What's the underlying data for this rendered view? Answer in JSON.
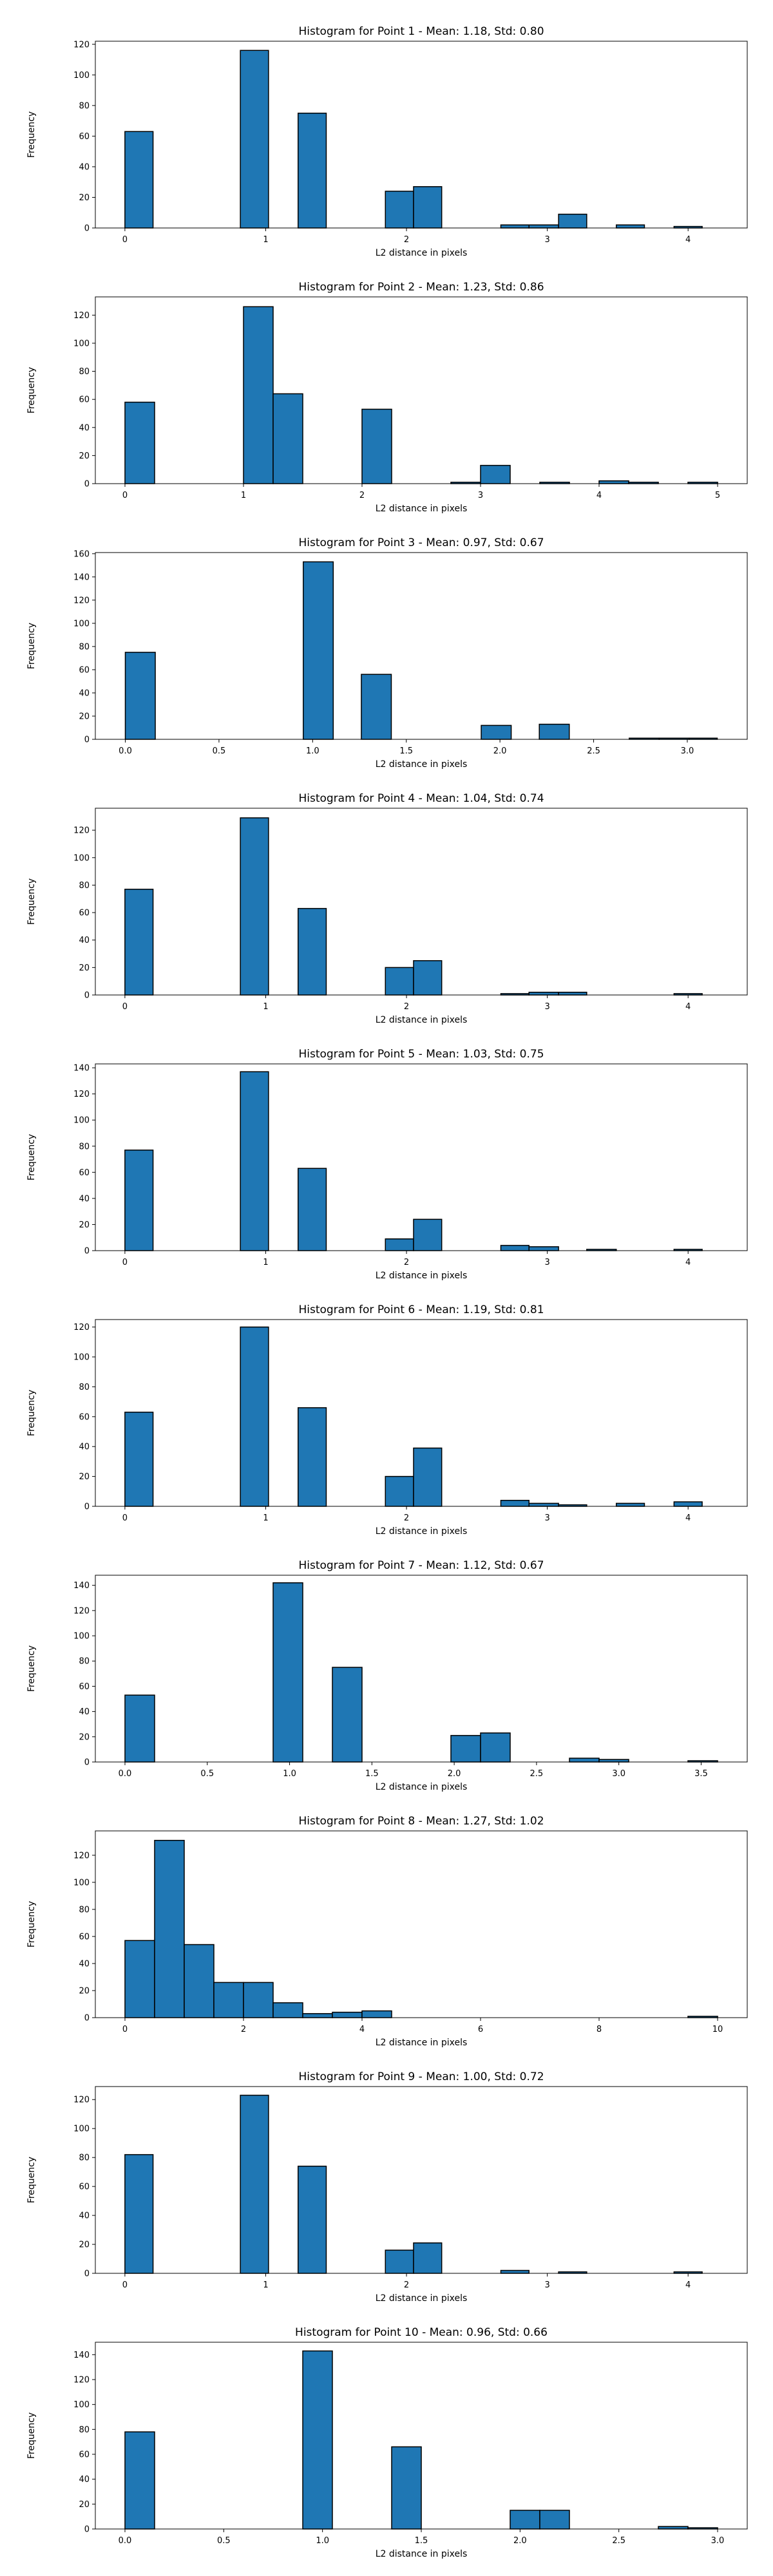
{
  "colors": {
    "bar_fill": "#1f77b4",
    "bar_edge": "#000000",
    "axis": "#000000",
    "background": "#ffffff"
  },
  "chart_data": [
    {
      "type": "bar",
      "title": "Histogram for Point 1 - Mean: 1.18, Std: 0.80",
      "xlabel": "L2 distance in pixels",
      "ylabel": "Frequency",
      "xlim": [
        -0.21,
        4.42
      ],
      "ylim": [
        0,
        122
      ],
      "xticks": [
        0,
        1,
        2,
        3,
        4
      ],
      "xtick_labels": [
        "0",
        "1",
        "2",
        "3",
        "4"
      ],
      "yticks": [
        0,
        20,
        40,
        60,
        80,
        100,
        120
      ],
      "bins": [
        [
          0,
          0.2,
          63
        ],
        [
          0.82,
          1.02,
          116
        ],
        [
          1.23,
          1.43,
          75
        ],
        [
          1.85,
          2.05,
          24
        ],
        [
          2.05,
          2.25,
          27
        ],
        [
          2.67,
          2.87,
          2
        ],
        [
          2.87,
          3.08,
          2
        ],
        [
          3.08,
          3.28,
          9
        ],
        [
          3.49,
          3.69,
          2
        ],
        [
          3.9,
          4.1,
          1
        ]
      ],
      "grid": false,
      "legend": "none"
    },
    {
      "type": "bar",
      "title": "Histogram for Point 2 - Mean: 1.23, Std: 0.86",
      "xlabel": "L2 distance in pixels",
      "ylabel": "Frequency",
      "xlim": [
        -0.25,
        5.25
      ],
      "ylim": [
        0,
        133
      ],
      "xticks": [
        0,
        1,
        2,
        3,
        4,
        5
      ],
      "xtick_labels": [
        "0",
        "1",
        "2",
        "3",
        "4",
        "5"
      ],
      "yticks": [
        0,
        20,
        40,
        60,
        80,
        100,
        120
      ],
      "bins": [
        [
          0,
          0.25,
          58
        ],
        [
          1,
          1.25,
          126
        ],
        [
          1.25,
          1.5,
          64
        ],
        [
          2,
          2.25,
          53
        ],
        [
          2.75,
          3,
          1
        ],
        [
          3,
          3.25,
          13
        ],
        [
          3.5,
          3.75,
          1
        ],
        [
          4,
          4.25,
          2
        ],
        [
          4.25,
          4.5,
          1
        ],
        [
          4.75,
          5,
          1
        ]
      ],
      "grid": false,
      "legend": "none"
    },
    {
      "type": "bar",
      "title": "Histogram for Point 3 - Mean: 0.97, Std: 0.67",
      "xlabel": "L2 distance in pixels",
      "ylabel": "Frequency",
      "xlim": [
        -0.16,
        3.32
      ],
      "ylim": [
        0,
        161
      ],
      "xticks": [
        0,
        0.5,
        1,
        1.5,
        2,
        2.5,
        3
      ],
      "xtick_labels": [
        "0.0",
        "0.5",
        "1.0",
        "1.5",
        "2.0",
        "2.5",
        "3.0"
      ],
      "yticks": [
        0,
        20,
        40,
        60,
        80,
        100,
        120,
        140,
        160
      ],
      "bins": [
        [
          0,
          0.16,
          75
        ],
        [
          0.95,
          1.11,
          153
        ],
        [
          1.26,
          1.42,
          56
        ],
        [
          1.9,
          2.06,
          12
        ],
        [
          2.21,
          2.37,
          13
        ],
        [
          2.69,
          2.85,
          1
        ],
        [
          2.85,
          3.01,
          1
        ],
        [
          3.01,
          3.16,
          1
        ]
      ],
      "grid": false,
      "legend": "none"
    },
    {
      "type": "bar",
      "title": "Histogram for Point 4 - Mean: 1.04, Std: 0.74",
      "xlabel": "L2 distance in pixels",
      "ylabel": "Frequency",
      "xlim": [
        -0.21,
        4.42
      ],
      "ylim": [
        0,
        136
      ],
      "xticks": [
        0,
        1,
        2,
        3,
        4
      ],
      "xtick_labels": [
        "0",
        "1",
        "2",
        "3",
        "4"
      ],
      "yticks": [
        0,
        20,
        40,
        60,
        80,
        100,
        120
      ],
      "bins": [
        [
          0,
          0.2,
          77
        ],
        [
          0.82,
          1.02,
          129
        ],
        [
          1.23,
          1.43,
          63
        ],
        [
          1.85,
          2.05,
          20
        ],
        [
          2.05,
          2.25,
          25
        ],
        [
          2.67,
          2.87,
          1
        ],
        [
          2.87,
          3.08,
          2
        ],
        [
          3.08,
          3.28,
          2
        ],
        [
          3.9,
          4.1,
          1
        ]
      ],
      "grid": false,
      "legend": "none"
    },
    {
      "type": "bar",
      "title": "Histogram for Point 5 - Mean: 1.03, Std: 0.75",
      "xlabel": "L2 distance in pixels",
      "ylabel": "Frequency",
      "xlim": [
        -0.21,
        4.42
      ],
      "ylim": [
        0,
        143
      ],
      "xticks": [
        0,
        1,
        2,
        3,
        4
      ],
      "xtick_labels": [
        "0",
        "1",
        "2",
        "3",
        "4"
      ],
      "yticks": [
        0,
        20,
        40,
        60,
        80,
        100,
        120,
        140
      ],
      "bins": [
        [
          0,
          0.2,
          77
        ],
        [
          0.82,
          1.02,
          137
        ],
        [
          1.23,
          1.43,
          63
        ],
        [
          1.85,
          2.05,
          9
        ],
        [
          2.05,
          2.25,
          24
        ],
        [
          2.67,
          2.87,
          4
        ],
        [
          2.87,
          3.08,
          3
        ],
        [
          3.28,
          3.49,
          1
        ],
        [
          3.9,
          4.1,
          1
        ]
      ],
      "grid": false,
      "legend": "none"
    },
    {
      "type": "bar",
      "title": "Histogram for Point 6 - Mean: 1.19, Std: 0.81",
      "xlabel": "L2 distance in pixels",
      "ylabel": "Frequency",
      "xlim": [
        -0.21,
        4.42
      ],
      "ylim": [
        0,
        125
      ],
      "xticks": [
        0,
        1,
        2,
        3,
        4
      ],
      "xtick_labels": [
        "0",
        "1",
        "2",
        "3",
        "4"
      ],
      "yticks": [
        0,
        20,
        40,
        60,
        80,
        100,
        120
      ],
      "bins": [
        [
          0,
          0.2,
          63
        ],
        [
          0.82,
          1.02,
          120
        ],
        [
          1.23,
          1.43,
          66
        ],
        [
          1.85,
          2.05,
          20
        ],
        [
          2.05,
          2.25,
          39
        ],
        [
          2.67,
          2.87,
          4
        ],
        [
          2.87,
          3.08,
          2
        ],
        [
          3.08,
          3.28,
          1
        ],
        [
          3.49,
          3.69,
          2
        ],
        [
          3.9,
          4.1,
          3
        ]
      ],
      "grid": false,
      "legend": "none"
    },
    {
      "type": "bar",
      "title": "Histogram for Point 7 - Mean: 1.12, Std: 0.67",
      "xlabel": "L2 distance in pixels",
      "ylabel": "Frequency",
      "xlim": [
        -0.18,
        3.78
      ],
      "ylim": [
        0,
        148
      ],
      "xticks": [
        0,
        0.5,
        1,
        1.5,
        2,
        2.5,
        3,
        3.5
      ],
      "xtick_labels": [
        "0.0",
        "0.5",
        "1.0",
        "1.5",
        "2.0",
        "2.5",
        "3.0",
        "3.5"
      ],
      "yticks": [
        0,
        20,
        40,
        60,
        80,
        100,
        120,
        140
      ],
      "bins": [
        [
          0,
          0.18,
          53
        ],
        [
          0.9,
          1.08,
          142
        ],
        [
          1.26,
          1.44,
          75
        ],
        [
          1.98,
          2.16,
          21
        ],
        [
          2.16,
          2.34,
          23
        ],
        [
          2.7,
          2.88,
          3
        ],
        [
          2.88,
          3.06,
          2
        ],
        [
          3.42,
          3.6,
          1
        ]
      ],
      "grid": false,
      "legend": "none"
    },
    {
      "type": "bar",
      "title": "Histogram for Point 8 - Mean: 1.27, Std: 1.02",
      "xlabel": "L2 distance in pixels",
      "ylabel": "Frequency",
      "xlim": [
        -0.5,
        10.5
      ],
      "ylim": [
        0,
        138
      ],
      "xticks": [
        0,
        2,
        4,
        6,
        8,
        10
      ],
      "xtick_labels": [
        "0",
        "2",
        "4",
        "6",
        "8",
        "10"
      ],
      "yticks": [
        0,
        20,
        40,
        60,
        80,
        100,
        120
      ],
      "bins": [
        [
          0,
          0.5,
          57
        ],
        [
          0.5,
          1,
          131
        ],
        [
          1,
          1.5,
          54
        ],
        [
          1.5,
          2,
          26
        ],
        [
          2,
          2.5,
          26
        ],
        [
          2.5,
          3,
          11
        ],
        [
          3,
          3.5,
          3
        ],
        [
          3.5,
          4,
          4
        ],
        [
          4,
          4.5,
          5
        ],
        [
          9.5,
          10,
          1
        ]
      ],
      "grid": false,
      "legend": "none"
    },
    {
      "type": "bar",
      "title": "Histogram for Point 9 - Mean: 1.00, Std: 0.72",
      "xlabel": "L2 distance in pixels",
      "ylabel": "Frequency",
      "xlim": [
        -0.21,
        4.42
      ],
      "ylim": [
        0,
        129
      ],
      "xticks": [
        0,
        1,
        2,
        3,
        4
      ],
      "xtick_labels": [
        "0",
        "1",
        "2",
        "3",
        "4"
      ],
      "yticks": [
        0,
        20,
        40,
        60,
        80,
        100,
        120
      ],
      "bins": [
        [
          0,
          0.2,
          82
        ],
        [
          0.82,
          1.02,
          123
        ],
        [
          1.23,
          1.43,
          74
        ],
        [
          1.85,
          2.05,
          16
        ],
        [
          2.05,
          2.25,
          21
        ],
        [
          2.67,
          2.87,
          2
        ],
        [
          3.08,
          3.28,
          1
        ],
        [
          3.9,
          4.1,
          1
        ]
      ],
      "grid": false,
      "legend": "none"
    },
    {
      "type": "bar",
      "title": "Histogram for Point 10 - Mean: 0.96, Std: 0.66",
      "xlabel": "L2 distance in pixels",
      "ylabel": "Frequency",
      "xlim": [
        -0.15,
        3.15
      ],
      "ylim": [
        0,
        150
      ],
      "xticks": [
        0,
        0.5,
        1,
        1.5,
        2,
        2.5,
        3
      ],
      "xtick_labels": [
        "0.0",
        "0.5",
        "1.0",
        "1.5",
        "2.0",
        "2.5",
        "3.0"
      ],
      "yticks": [
        0,
        20,
        40,
        60,
        80,
        100,
        120,
        140
      ],
      "bins": [
        [
          0,
          0.15,
          78
        ],
        [
          0.9,
          1.05,
          143
        ],
        [
          1.35,
          1.5,
          66
        ],
        [
          1.95,
          2.1,
          15
        ],
        [
          2.1,
          2.25,
          15
        ],
        [
          2.7,
          2.85,
          2
        ],
        [
          2.85,
          3,
          1
        ]
      ],
      "grid": false,
      "legend": "none"
    }
  ]
}
